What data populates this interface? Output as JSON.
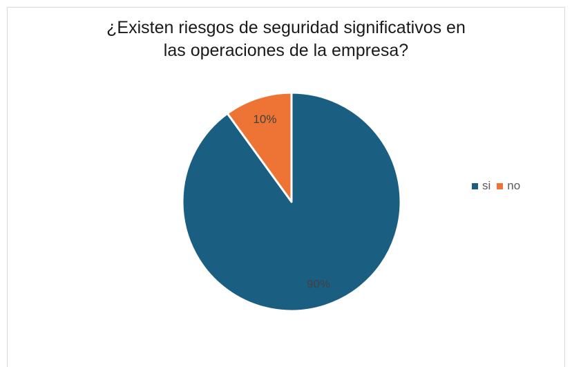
{
  "chart_data": {
    "type": "pie",
    "title": "¿Existen riesgos de seguridad significativos en\nlas operaciones de la empresa?",
    "categories": [
      "si",
      "no"
    ],
    "values": [
      90,
      10
    ],
    "data_labels": [
      "90%",
      "10%"
    ],
    "colors": [
      "#1a5f82",
      "#ed7434"
    ],
    "data_label_color": "#404040",
    "legend": "right"
  }
}
